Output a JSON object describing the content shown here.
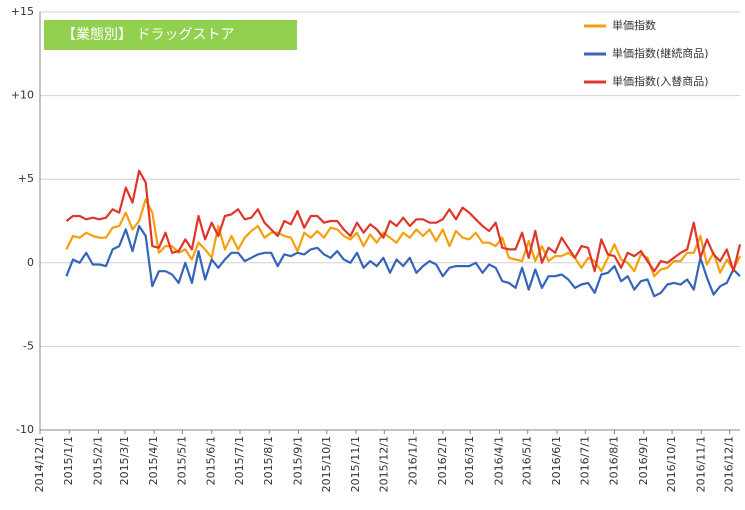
{
  "chart_data": {
    "type": "line",
    "title": "【業態別】 ドラッグストア",
    "legend": "top-right",
    "grid": true,
    "x": [
      "2014/12/29",
      "2015/1/5",
      "2015/1/12",
      "2015/1/19",
      "2015/1/26",
      "2015/2/2",
      "2015/2/9",
      "2015/2/16",
      "2015/2/23",
      "2015/3/2",
      "2015/3/9",
      "2015/3/16",
      "2015/3/23",
      "2015/3/30",
      "2015/4/6",
      "2015/4/13",
      "2015/4/20",
      "2015/4/27",
      "2015/5/4",
      "2015/5/11",
      "2015/5/18",
      "2015/5/25",
      "2015/6/1",
      "2015/6/8",
      "2015/6/15",
      "2015/6/22",
      "2015/6/29",
      "2015/7/6",
      "2015/7/13",
      "2015/7/20",
      "2015/7/27",
      "2015/8/3",
      "2015/8/10",
      "2015/8/17",
      "2015/8/24",
      "2015/8/31",
      "2015/9/7",
      "2015/9/14",
      "2015/9/21",
      "2015/9/28",
      "2015/10/5",
      "2015/10/12",
      "2015/10/19",
      "2015/10/26",
      "2015/11/2",
      "2015/11/9",
      "2015/11/16",
      "2015/11/23",
      "2015/11/30",
      "2015/12/7",
      "2015/12/14",
      "2015/12/21",
      "2015/12/28",
      "2016/1/4",
      "2016/1/11",
      "2016/1/18",
      "2016/1/25",
      "2016/2/1",
      "2016/2/8",
      "2016/2/15",
      "2016/2/22",
      "2016/2/29",
      "2016/3/7",
      "2016/3/14",
      "2016/3/21",
      "2016/3/28",
      "2016/4/4",
      "2016/4/11",
      "2016/4/18",
      "2016/4/25",
      "2016/5/2",
      "2016/5/9",
      "2016/5/16",
      "2016/5/23",
      "2016/5/30",
      "2016/6/6",
      "2016/6/13",
      "2016/6/20",
      "2016/6/27",
      "2016/7/4",
      "2016/7/11",
      "2016/7/18",
      "2016/7/25",
      "2016/8/1",
      "2016/8/8",
      "2016/8/15",
      "2016/8/22",
      "2016/8/29",
      "2016/9/5",
      "2016/9/12",
      "2016/9/19",
      "2016/9/26",
      "2016/10/3",
      "2016/10/10",
      "2016/10/17",
      "2016/10/24",
      "2016/10/31",
      "2016/11/7",
      "2016/11/14",
      "2016/11/21",
      "2016/11/28",
      "2016/12/5",
      "2016/12/12"
    ],
    "series": [
      {
        "name": "単価指数",
        "color": "#f5a00a",
        "values": [
          0.8,
          1.6,
          1.5,
          1.8,
          1.6,
          1.5,
          1.5,
          2.1,
          2.2,
          3.0,
          2.0,
          2.5,
          3.8,
          3.0,
          0.6,
          1.0,
          1.0,
          0.6,
          0.8,
          0.2,
          1.2,
          0.8,
          0.3,
          2.2,
          0.8,
          1.6,
          0.8,
          1.5,
          1.9,
          2.2,
          1.5,
          1.8,
          1.8,
          1.6,
          1.5,
          0.7,
          1.8,
          1.5,
          1.9,
          1.5,
          2.1,
          2.0,
          1.6,
          1.4,
          1.8,
          1.0,
          1.7,
          1.2,
          1.8,
          1.5,
          1.2,
          1.8,
          1.5,
          2.0,
          1.6,
          2.0,
          1.3,
          2.0,
          1.0,
          1.9,
          1.5,
          1.4,
          1.8,
          1.2,
          1.2,
          1.0,
          1.5,
          0.3,
          0.2,
          0.1,
          1.3,
          0.1,
          1.0,
          0.1,
          0.4,
          0.4,
          0.6,
          0.3,
          -0.3,
          0.3,
          0.1,
          -0.5,
          0.3,
          1.1,
          0.2,
          0.0,
          -0.5,
          0.5,
          0.3,
          -0.8,
          -0.4,
          -0.3,
          0.1,
          0.1,
          0.6,
          0.6,
          1.6,
          -0.1,
          0.6,
          -0.6,
          0.2,
          -0.4,
          0.4
        ]
      },
      {
        "name": "単価指数(継続商品)",
        "color": "#3565b8",
        "values": [
          -0.8,
          0.2,
          0.0,
          0.6,
          -0.1,
          -0.1,
          -0.2,
          0.8,
          1.0,
          2.0,
          0.7,
          2.2,
          1.6,
          -1.4,
          -0.5,
          -0.5,
          -0.7,
          -1.2,
          0.0,
          -1.2,
          0.7,
          -1.0,
          0.2,
          -0.3,
          0.2,
          0.6,
          0.6,
          0.1,
          0.3,
          0.5,
          0.6,
          0.6,
          -0.2,
          0.5,
          0.4,
          0.6,
          0.5,
          0.8,
          0.9,
          0.5,
          0.3,
          0.7,
          0.2,
          0.0,
          0.6,
          -0.3,
          0.1,
          -0.2,
          0.3,
          -0.6,
          0.2,
          -0.2,
          0.3,
          -0.6,
          -0.2,
          0.1,
          -0.1,
          -0.8,
          -0.3,
          -0.2,
          -0.2,
          -0.2,
          0.0,
          -0.6,
          -0.1,
          -0.3,
          -1.1,
          -1.2,
          -1.5,
          -0.3,
          -1.6,
          -0.4,
          -1.5,
          -0.8,
          -0.8,
          -0.7,
          -1.0,
          -1.5,
          -1.3,
          -1.2,
          -1.8,
          -0.7,
          -0.6,
          -0.2,
          -1.1,
          -0.8,
          -1.6,
          -1.1,
          -1.0,
          -2.0,
          -1.8,
          -1.3,
          -1.2,
          -1.3,
          -1.0,
          -1.6,
          0.3,
          -0.9,
          -1.9,
          -1.4,
          -1.2,
          -0.4,
          -0.8
        ]
      },
      {
        "name": "単価指数(入替商品)",
        "color": "#e0352b",
        "values": [
          2.5,
          2.8,
          2.8,
          2.6,
          2.7,
          2.6,
          2.7,
          3.2,
          3.0,
          4.5,
          3.6,
          5.5,
          4.8,
          1.0,
          0.9,
          1.8,
          0.6,
          0.7,
          1.4,
          0.8,
          2.8,
          1.4,
          2.4,
          1.6,
          2.8,
          2.9,
          3.2,
          2.6,
          2.7,
          3.2,
          2.4,
          2.0,
          1.6,
          2.5,
          2.3,
          3.1,
          2.1,
          2.8,
          2.8,
          2.4,
          2.5,
          2.5,
          2.0,
          1.6,
          2.4,
          1.8,
          2.3,
          2.0,
          1.5,
          2.5,
          2.2,
          2.7,
          2.2,
          2.6,
          2.6,
          2.4,
          2.4,
          2.6,
          3.2,
          2.6,
          3.3,
          3.0,
          2.6,
          2.2,
          1.9,
          2.4,
          0.9,
          0.8,
          0.8,
          1.8,
          0.3,
          1.9,
          0.0,
          0.9,
          0.6,
          1.5,
          0.9,
          0.3,
          1.0,
          0.9,
          -0.5,
          1.4,
          0.5,
          0.4,
          -0.3,
          0.6,
          0.4,
          0.7,
          0.1,
          -0.5,
          0.1,
          0.0,
          0.3,
          0.6,
          0.8,
          2.4,
          0.3,
          1.4,
          0.5,
          0.1,
          0.8,
          -0.5,
          1.1
        ]
      }
    ],
    "xlim": [
      "2014/12/1",
      "2016/12/12"
    ],
    "xticks": [
      "2014/12/1",
      "2015/1/1",
      "2015/2/1",
      "2015/3/1",
      "2015/4/1",
      "2015/5/1",
      "2015/6/1",
      "2015/7/1",
      "2015/8/1",
      "2015/9/1",
      "2015/10/1",
      "2015/11/1",
      "2015/12/1",
      "2016/1/1",
      "2016/2/1",
      "2016/3/1",
      "2016/4/1",
      "2016/5/1",
      "2016/6/1",
      "2016/7/1",
      "2016/8/1",
      "2016/9/1",
      "2016/10/1",
      "2016/11/1",
      "2016/12/1"
    ],
    "ylim": [
      -10,
      15
    ],
    "yticks": [
      {
        "value": 15,
        "label": "+15"
      },
      {
        "value": 10,
        "label": "+10"
      },
      {
        "value": 5,
        "label": "+5"
      },
      0,
      -5,
      -10
    ]
  }
}
